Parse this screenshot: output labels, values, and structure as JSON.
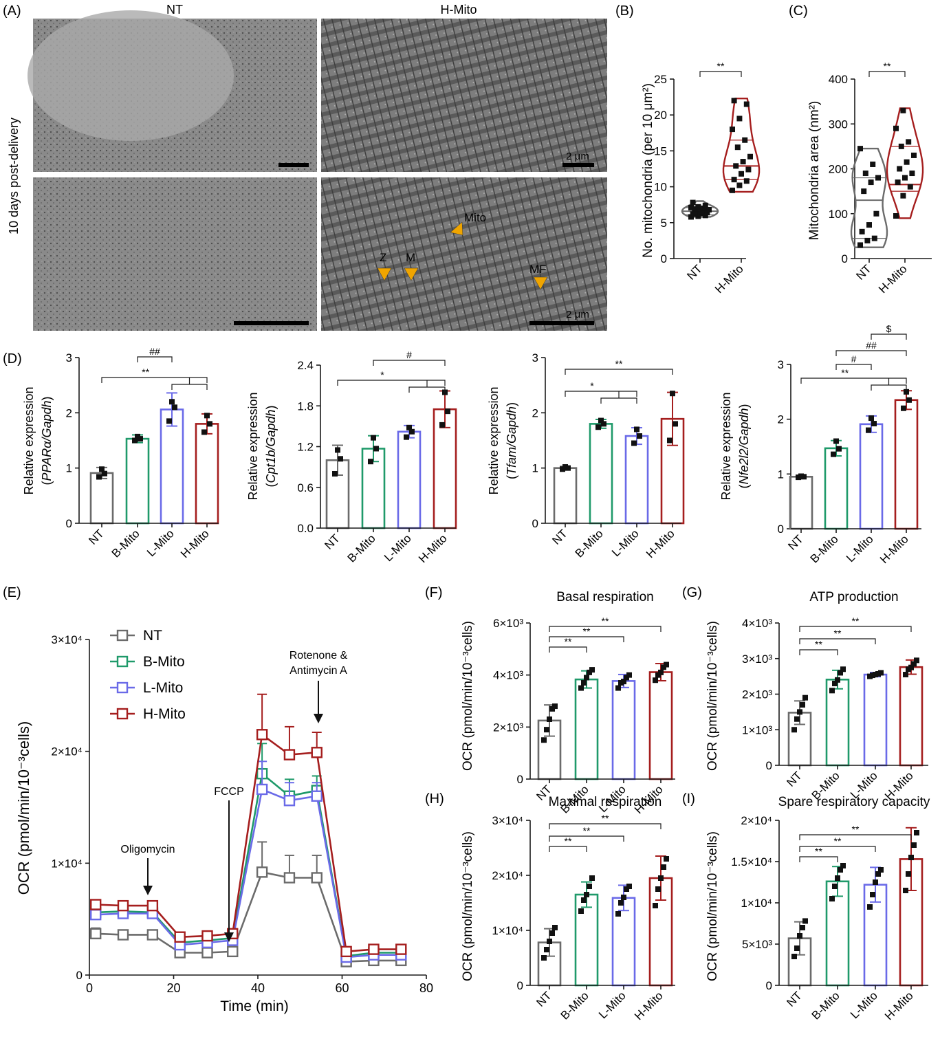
{
  "colors": {
    "NT": "#6b6b6b",
    "B-Mito": "#1f9a6a",
    "L-Mito": "#6a6ae8",
    "H-Mito": "#a51e1e",
    "arrowhead": "#f0a500",
    "axis": "#1a1a1a"
  },
  "panel_a": {
    "letter": "(A)",
    "col_nt": "NT",
    "col_hmito": "H-Mito",
    "side_label": "10 days post-delivery",
    "scale_labels": [
      "2 μm",
      "2 μm"
    ],
    "annotations": [
      "Mito",
      "Z",
      "M",
      "MF"
    ]
  },
  "chart_data": [
    {
      "id": "B",
      "letter": "(B)",
      "type": "violin",
      "ylabel": "No. mitochondria (per 10 μm²)",
      "ylim": [
        0,
        25
      ],
      "yticks": [
        "0",
        "5",
        "10",
        "15",
        "20",
        "25"
      ],
      "categories": [
        "NT",
        "H-Mito"
      ],
      "points": [
        [
          6.2,
          6.5,
          6.8,
          7.1,
          7.4,
          6.0,
          5.8,
          6.3,
          7.0,
          7.8,
          6.6,
          6.4,
          5.9,
          7.2,
          6.9
        ],
        [
          9.5,
          10.2,
          11.0,
          11.8,
          12.4,
          12.9,
          13.5,
          14.2,
          15.5,
          16.5,
          18.0,
          19.5,
          21.5,
          22.0,
          10.8
        ]
      ],
      "median": [
        6.6,
        12.9
      ],
      "quartiles": [
        [
          6.1,
          7.1
        ],
        [
          11.0,
          16.5
        ]
      ],
      "range": [
        [
          5.8,
          8.0
        ],
        [
          9.3,
          22.3
        ]
      ],
      "sig": [
        "**"
      ]
    },
    {
      "id": "C",
      "letter": "(C)",
      "type": "violin",
      "ylabel": "Mitochondria area (nm²)",
      "ylim": [
        0,
        400
      ],
      "yticks": [
        "0",
        "100",
        "200",
        "300",
        "400"
      ],
      "categories": [
        "NT",
        "H-Mito"
      ],
      "points": [
        [
          30,
          45,
          60,
          75,
          100,
          150,
          170,
          180,
          190,
          210,
          245,
          40
        ],
        [
          95,
          140,
          160,
          170,
          180,
          200,
          215,
          230,
          250,
          260,
          290,
          330,
          190
        ]
      ],
      "median": [
        130,
        165
      ],
      "quartiles": [
        [
          45,
          180
        ],
        [
          150,
          250
        ]
      ],
      "range": [
        [
          25,
          245
        ],
        [
          90,
          335
        ]
      ],
      "sig": [
        "**"
      ]
    },
    {
      "id": "D1",
      "letter": "(D)",
      "type": "bar",
      "ylabel": "Relative expression",
      "ylabel_gene": "PPARα/Gapdh",
      "ylim": [
        0,
        3
      ],
      "yticks": [
        "0",
        "1",
        "2",
        "3"
      ],
      "categories": [
        "NT",
        "B-Mito",
        "L-Mito",
        "H-Mito"
      ],
      "values": [
        0.91,
        1.53,
        2.06,
        1.8
      ],
      "errors": [
        0.1,
        0.07,
        0.3,
        0.18
      ],
      "points": [
        [
          0.84,
          0.98,
          0.9
        ],
        [
          1.5,
          1.57,
          1.53
        ],
        [
          1.85,
          2.2,
          2.1
        ],
        [
          1.65,
          1.95,
          1.8
        ]
      ],
      "sig": [
        "**",
        "##"
      ]
    },
    {
      "id": "D2",
      "type": "bar",
      "ylabel": "Relative expression",
      "ylabel_gene": "Cpt1b/Gapdh",
      "ylim": [
        0,
        2.4
      ],
      "yticks": [
        "0.0",
        "0.6",
        "1.2",
        "1.8",
        "2.4"
      ],
      "categories": [
        "NT",
        "B-Mito",
        "L-Mito",
        "H-Mito"
      ],
      "values": [
        1.0,
        1.17,
        1.42,
        1.75
      ],
      "errors": [
        0.22,
        0.19,
        0.09,
        0.27
      ],
      "points": [
        [
          0.8,
          1.15,
          1.02
        ],
        [
          0.98,
          1.33,
          1.17
        ],
        [
          1.34,
          1.48,
          1.42
        ],
        [
          1.52,
          2.0,
          1.72
        ]
      ],
      "sig": [
        "*",
        "#"
      ]
    },
    {
      "id": "D3",
      "type": "bar",
      "ylabel": "Relative expression",
      "ylabel_gene": "Tfam/Gapdh",
      "ylim": [
        0,
        3
      ],
      "yticks": [
        "0",
        "1",
        "2",
        "3"
      ],
      "categories": [
        "NT",
        "B-Mito",
        "L-Mito",
        "H-Mito"
      ],
      "values": [
        1.0,
        1.8,
        1.58,
        1.89
      ],
      "errors": [
        0.03,
        0.08,
        0.15,
        0.48
      ],
      "points": [
        [
          0.98,
          1.02,
          1.0
        ],
        [
          1.74,
          1.86,
          1.8
        ],
        [
          1.45,
          1.7,
          1.58
        ],
        [
          1.5,
          2.35,
          1.8
        ]
      ],
      "sig": [
        "**",
        "*"
      ]
    },
    {
      "id": "D4",
      "type": "bar",
      "ylabel": "Relative expression",
      "ylabel_gene": "Nfe2l2/Gapdh",
      "ylim": [
        0,
        3
      ],
      "yticks": [
        "0",
        "1",
        "2",
        "3"
      ],
      "categories": [
        "NT",
        "B-Mito",
        "L-Mito",
        "H-Mito"
      ],
      "values": [
        0.95,
        1.47,
        1.91,
        2.35
      ],
      "errors": [
        0.02,
        0.14,
        0.15,
        0.17
      ],
      "points": [
        [
          0.94,
          0.96,
          0.95
        ],
        [
          1.36,
          1.6,
          1.46
        ],
        [
          1.8,
          2.02,
          1.92
        ],
        [
          2.2,
          2.5,
          2.35
        ]
      ],
      "sig": [
        "**",
        "#",
        "##",
        "$"
      ]
    },
    {
      "id": "E",
      "letter": "(E)",
      "type": "line",
      "xlabel": "Time (min)",
      "ylabel": "OCR (pmol/min/10⁻³cells)",
      "xlim": [
        0,
        80
      ],
      "xticks": [
        "0",
        "20",
        "40",
        "60",
        "80"
      ],
      "ylim": [
        0,
        30000
      ],
      "yticks": [
        "0",
        "1×10⁴",
        "2×10⁴",
        "3×10⁴"
      ],
      "x": [
        1.5,
        8,
        15,
        21.5,
        28,
        34,
        41,
        47.5,
        54,
        61,
        67.5,
        74
      ],
      "series": [
        {
          "name": "NT",
          "values": [
            3700,
            3600,
            3600,
            2000,
            2000,
            2100,
            9200,
            8700,
            8700,
            1200,
            1300,
            1300
          ],
          "errors": [
            500,
            400,
            400,
            300,
            300,
            300,
            2700,
            2000,
            2000,
            300,
            300,
            300
          ]
        },
        {
          "name": "B-Mito",
          "values": [
            5600,
            5700,
            5600,
            2900,
            3100,
            3300,
            18000,
            16000,
            16500,
            1700,
            2000,
            2000
          ],
          "errors": [
            300,
            300,
            300,
            300,
            300,
            300,
            2700,
            1500,
            1300,
            300,
            300,
            300
          ]
        },
        {
          "name": "L-Mito",
          "values": [
            5400,
            5500,
            5500,
            2700,
            2900,
            3100,
            16600,
            15600,
            16000,
            1600,
            1800,
            1800
          ],
          "errors": [
            300,
            300,
            300,
            300,
            300,
            300,
            2500,
            1600,
            1200,
            300,
            300,
            300
          ]
        },
        {
          "name": "H-Mito",
          "values": [
            6300,
            6200,
            6200,
            3400,
            3500,
            3700,
            21500,
            19700,
            19900,
            2100,
            2300,
            2300
          ],
          "errors": [
            300,
            300,
            300,
            300,
            300,
            300,
            3600,
            2500,
            1800,
            300,
            300,
            300
          ]
        }
      ],
      "annotations": [
        "Oligomycin",
        "FCCP",
        "Rotenone &",
        "Antimycin A"
      ]
    },
    {
      "id": "F",
      "letter": "(F)",
      "type": "bar",
      "title": "Basal respiration",
      "ylabel": "OCR (pmol/min/10⁻³cells)",
      "ylim": [
        0,
        6000
      ],
      "yticks": [
        "0",
        "2×10³",
        "4×10³",
        "6×10³"
      ],
      "categories": [
        "NT",
        "B-Mito",
        "L-Mito",
        "H-Mito"
      ],
      "values": [
        2250,
        3830,
        3770,
        4110
      ],
      "errors": [
        600,
        330,
        250,
        330
      ],
      "points": [
        [
          1500,
          1900,
          2300,
          2700,
          2800
        ],
        [
          3500,
          3700,
          3900,
          4100,
          4200
        ],
        [
          3500,
          3700,
          3750,
          3900,
          4000
        ],
        [
          3800,
          4000,
          4100,
          4300,
          4400
        ]
      ],
      "sig": [
        "**",
        "**",
        "**"
      ]
    },
    {
      "id": "G",
      "letter": "(G)",
      "type": "bar",
      "title": "ATP production",
      "ylabel": "OCR (pmol/min/10⁻³cells)",
      "ylim": [
        0,
        4000
      ],
      "yticks": [
        "0",
        "1×10³",
        "2×10³",
        "3×10³",
        "4×10³"
      ],
      "categories": [
        "NT",
        "B-Mito",
        "L-Mito",
        "H-Mito"
      ],
      "values": [
        1480,
        2410,
        2550,
        2760
      ],
      "errors": [
        330,
        260,
        60,
        200
      ],
      "points": [
        [
          1000,
          1300,
          1500,
          1700,
          1900
        ],
        [
          2100,
          2300,
          2400,
          2600,
          2700
        ],
        [
          2500,
          2530,
          2550,
          2570,
          2600
        ],
        [
          2550,
          2700,
          2750,
          2850,
          2950
        ]
      ],
      "sig": [
        "**",
        "**",
        "**"
      ]
    },
    {
      "id": "H",
      "letter": "(H)",
      "type": "bar",
      "title": "Maximal respiration",
      "ylabel": "OCR (pmol/min/10⁻³cells)",
      "ylim": [
        0,
        30000
      ],
      "yticks": [
        "0",
        "1×10⁴",
        "2×10⁴",
        "3×10⁴"
      ],
      "categories": [
        "NT",
        "B-Mito",
        "L-Mito",
        "H-Mito"
      ],
      "values": [
        7800,
        16500,
        15900,
        19500
      ],
      "errors": [
        2500,
        2300,
        2300,
        4000
      ],
      "points": [
        [
          5000,
          6500,
          8000,
          9500,
          10500
        ],
        [
          13500,
          15500,
          16500,
          18000,
          19500
        ],
        [
          13000,
          15000,
          16000,
          17500,
          18000
        ],
        [
          14500,
          17500,
          19500,
          21500,
          23000
        ]
      ],
      "sig": [
        "**",
        "**",
        "**"
      ]
    },
    {
      "id": "I",
      "letter": "(I)",
      "type": "bar",
      "title": "Spare respiratory capacity",
      "ylabel": "OCR (pmol/min/10⁻³cells)",
      "ylim": [
        0,
        20000
      ],
      "yticks": [
        "0",
        "5×10³",
        "1×10⁴",
        "1.5×10⁴",
        "2×10⁴"
      ],
      "categories": [
        "NT",
        "B-Mito",
        "L-Mito",
        "H-Mito"
      ],
      "values": [
        5700,
        12600,
        12200,
        15300
      ],
      "errors": [
        2000,
        1800,
        2100,
        3800
      ],
      "points": [
        [
          3500,
          4500,
          6000,
          7000,
          7800
        ],
        [
          10500,
          12000,
          13000,
          14000,
          14500
        ],
        [
          9500,
          11000,
          12500,
          13500,
          14000
        ],
        [
          11500,
          13500,
          15500,
          17000,
          18500
        ]
      ],
      "sig": [
        "**",
        "**",
        "**"
      ]
    }
  ]
}
